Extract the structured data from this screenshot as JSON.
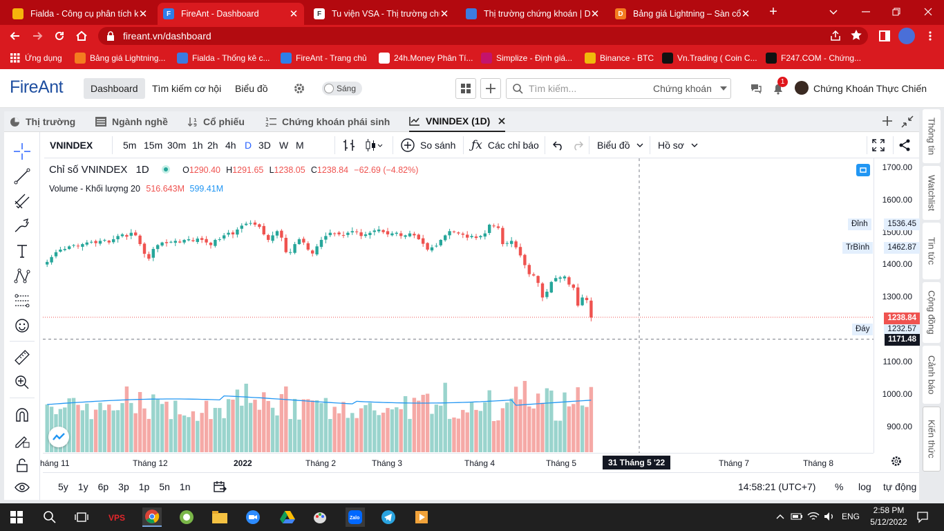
{
  "browser": {
    "tabs": [
      {
        "title": "Fialda - Công cụ phân tích kỹ",
        "icon": "fialda-icon",
        "color": "#f6b40c"
      },
      {
        "title": "FireAnt - Dashboard",
        "icon": "fireant-icon",
        "color": "#2f7ee8"
      },
      {
        "title": "Tu viện VSA - Thị trường chứ",
        "icon": "f247-icon",
        "color": "#ffffff"
      },
      {
        "title": "Thị trường chứng khoán | Dữ",
        "icon": "chart-icon",
        "color": "#3c7be0"
      },
      {
        "title": "Bảng giá Lightning – Sàn cổ p",
        "icon": "lightning-icon",
        "color": "#f47c20"
      }
    ],
    "url": "fireant.vn/dashboard",
    "bookmarks": [
      {
        "label": "Ứng dụng",
        "icon": "apps-icon"
      },
      {
        "label": "Bảng giá Lightning...",
        "icon": "lightning-icon"
      },
      {
        "label": "Fialda - Thống kê c...",
        "icon": "fialda-icon"
      },
      {
        "label": "FireAnt - Trang chủ",
        "icon": "fireant-icon"
      },
      {
        "label": "24h.Money Phân Tí...",
        "icon": "money24h-icon"
      },
      {
        "label": "Simplize - Định giá...",
        "icon": "simplize-icon"
      },
      {
        "label": "Binance - BTC",
        "icon": "binance-icon"
      },
      {
        "label": "Vn.Trading ( Coin C...",
        "icon": "tradingview-icon"
      },
      {
        "label": "F247.COM - Chứng...",
        "icon": "f247-icon"
      }
    ]
  },
  "app": {
    "logo": "FireAnt",
    "nav": [
      "Dashboard",
      "Tìm kiếm cơ hội",
      "Biểu đồ"
    ],
    "theme_label": "Sáng",
    "search_placeholder": "Tìm kiếm...",
    "search_scope": "Chứng khoán",
    "notification_count": "1",
    "username": "Chứng Khoán Thực Chiến"
  },
  "panel_tabs": [
    "Thị trường",
    "Ngành nghề",
    "Cổ phiếu",
    "Chứng khoán phái sinh",
    "VNINDEX (1D)"
  ],
  "toolbar": {
    "symbol": "VNINDEX",
    "intervals": [
      "5m",
      "15m",
      "30m",
      "1h",
      "2h",
      "4h",
      "D",
      "3D",
      "W",
      "M"
    ],
    "active_interval": "D",
    "compare": "So sánh",
    "indicators": "Các chỉ báo",
    "chart_menu": "Biểu đồ",
    "profile_menu": "Hồ sơ"
  },
  "legend": {
    "title": "Chỉ số VNINDEX",
    "interval": "1D",
    "o_label": "O",
    "o": "1290.40",
    "h_label": "H",
    "h": "1291.65",
    "l_label": "L",
    "l": "1238.05",
    "c_label": "C",
    "c": "1238.84",
    "change": "−62.69 (−4.82%)",
    "volume_label": "Volume - Khối lượng 20",
    "volume": "516.643M",
    "volume_ma": "599.41M"
  },
  "price_axis": [
    "1700.00",
    "1600.00",
    "1500.00",
    "1400.00",
    "1300.00",
    "1100.00",
    "1000.00",
    "900.00"
  ],
  "price_tags": {
    "high_label": "Đỉnh",
    "high": "1536.45",
    "avg_label": "TrBình",
    "avg": "1462.87",
    "low_label": "Đáy",
    "low": "1232.57",
    "last": "1238.84",
    "cursor": "1171.48"
  },
  "time_axis": [
    "háng 11",
    "Tháng 12",
    "2022",
    "Tháng 2",
    "Tháng 3",
    "Tháng 4",
    "Tháng 5",
    "Tháng 7",
    "Tháng 8"
  ],
  "cursor_date": "31 Tháng 5 '22",
  "ranges": [
    "5y",
    "1y",
    "6p",
    "3p",
    "1p",
    "5n",
    "1n"
  ],
  "bottom": {
    "clock": "14:58:21 (UTC+7)",
    "percent": "%",
    "log": "log",
    "auto": "tự động"
  },
  "right_tabs": [
    "Thông tin",
    "Watchlist",
    "Tin tức",
    "Cộng đồng",
    "Cảnh báo",
    "Kiến thức"
  ],
  "taskbar": {
    "lang": "ENG",
    "time": "2:58 PM",
    "date": "5/12/2022"
  },
  "colors": {
    "up": "#26a69a",
    "down": "#ef5350",
    "browser": "#d91a1f",
    "accent": "#2962ff"
  },
  "chart_data": {
    "type": "candlestick",
    "symbol": "VNINDEX",
    "interval": "1D",
    "ylim": [
      820,
      1730
    ],
    "price_series": [
      1410,
      1425,
      1440,
      1448,
      1450,
      1458,
      1462,
      1458,
      1465,
      1470,
      1472,
      1468,
      1475,
      1478,
      1470,
      1480,
      1490,
      1495,
      1488,
      1500,
      1492,
      1465,
      1435,
      1420,
      1450,
      1462,
      1470,
      1468,
      1472,
      1475,
      1470,
      1478,
      1480,
      1474,
      1482,
      1478,
      1470,
      1462,
      1478,
      1480,
      1492,
      1500,
      1495,
      1510,
      1522,
      1528,
      1530,
      1525,
      1518,
      1495,
      1478,
      1492,
      1505,
      1485,
      1440,
      1440,
      1465,
      1480,
      1470,
      1448,
      1436,
      1458,
      1478,
      1490,
      1500,
      1498,
      1495,
      1492,
      1500,
      1505,
      1502,
      1490,
      1495,
      1500,
      1507,
      1510,
      1502,
      1495,
      1498,
      1500,
      1490,
      1492,
      1498,
      1492,
      1480,
      1466,
      1448,
      1455,
      1460,
      1478,
      1492,
      1505,
      1502,
      1498,
      1494,
      1485,
      1490,
      1484,
      1490,
      1498,
      1525,
      1520,
      1515,
      1465,
      1468,
      1475,
      1455,
      1430,
      1400,
      1372,
      1368,
      1345,
      1300,
      1318,
      1348,
      1360,
      1362,
      1365,
      1340,
      1330,
      1275,
      1300,
      1292,
      1238
    ],
    "last_close": 1238.84,
    "volume": {
      "label": "Volume - Khối lượng 20",
      "last": "516.643M",
      "ma20": "599.41M"
    }
  }
}
